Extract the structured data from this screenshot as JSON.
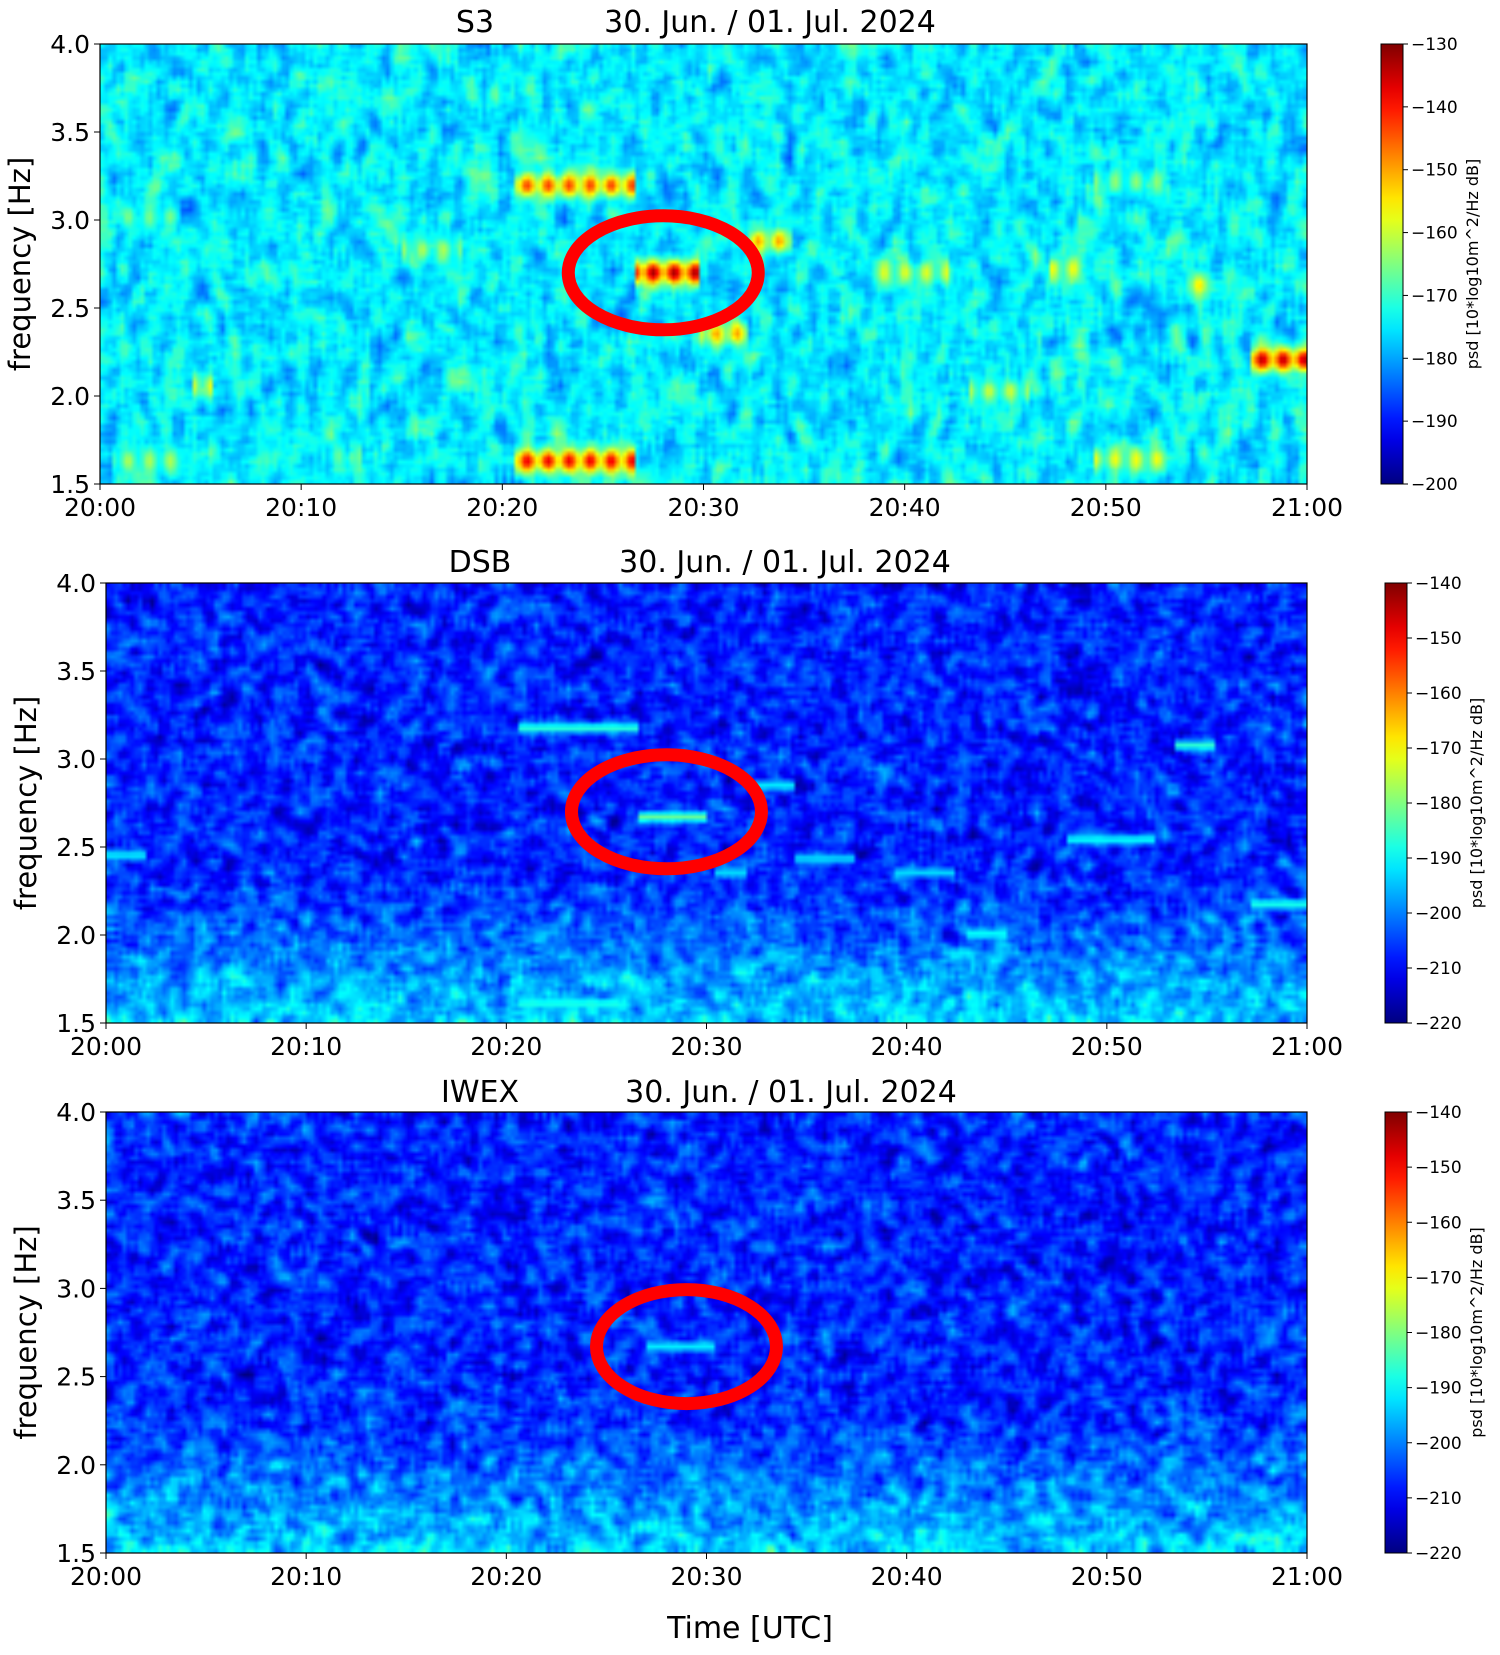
{
  "figure": {
    "xlabel": "Time [UTC]"
  },
  "chart_data": [
    {
      "type": "heatmap",
      "station": "S3",
      "date": "30. Jun. / 01. Jul. 2024",
      "ylabel": "frequency [Hz]",
      "xlabel": "",
      "xlim": [
        "20:00",
        "21:00"
      ],
      "ylim": [
        1.5,
        4.0
      ],
      "xticks": [
        "20:00",
        "20:10",
        "20:20",
        "20:30",
        "20:40",
        "20:50",
        "21:00"
      ],
      "yticks": [
        1.5,
        2.0,
        2.5,
        3.0,
        3.5,
        4.0
      ],
      "colorbar": {
        "label": "psd [10*log10m^2/Hz dB]",
        "range": [
          -200,
          -130
        ],
        "ticks": [
          -130,
          -140,
          -150,
          -160,
          -170,
          -180,
          -190,
          -200
        ],
        "colormap": "jet"
      },
      "background": "noise",
      "features": [
        {
          "t0": 20.5,
          "t1": 26.5,
          "f": 3.2,
          "level": 0.82
        },
        {
          "t0": 20.5,
          "t1": 26.5,
          "f": 1.62,
          "level": 0.9
        },
        {
          "t0": 26.5,
          "t1": 29.8,
          "f": 2.7,
          "level": 0.97
        },
        {
          "t0": 29.8,
          "t1": 32.3,
          "f": 2.35,
          "level": 0.72
        },
        {
          "t0": 32.3,
          "t1": 34.5,
          "f": 2.88,
          "level": 0.72
        },
        {
          "t0": 38.5,
          "t1": 42.3,
          "f": 2.7,
          "level": 0.6
        },
        {
          "t0": 43.3,
          "t1": 46.3,
          "f": 2.02,
          "level": 0.58
        },
        {
          "t0": 47.3,
          "t1": 48.8,
          "f": 2.72,
          "level": 0.62
        },
        {
          "t0": 49.5,
          "t1": 53.0,
          "f": 3.22,
          "level": 0.52
        },
        {
          "t0": 49.5,
          "t1": 53.0,
          "f": 1.63,
          "level": 0.62
        },
        {
          "t0": 54.0,
          "t1": 55.3,
          "f": 2.63,
          "level": 0.65
        },
        {
          "t0": 57.3,
          "t1": 60.0,
          "f": 2.2,
          "level": 0.95
        },
        {
          "t0": 0.5,
          "t1": 4.0,
          "f": 1.62,
          "level": 0.55
        },
        {
          "t0": 1.0,
          "t1": 4.0,
          "f": 3.02,
          "level": 0.5
        },
        {
          "t0": 4.5,
          "t1": 5.5,
          "f": 2.05,
          "level": 0.62
        },
        {
          "t0": 15.0,
          "t1": 18.0,
          "f": 2.83,
          "level": 0.55
        },
        {
          "t0": 11.0,
          "t1": 13.0,
          "f": 1.65,
          "level": 0.48
        }
      ],
      "annotation": {
        "shape": "ellipse",
        "color": "#ff0000",
        "t": 28.0,
        "f": 2.7
      }
    },
    {
      "type": "heatmap",
      "station": "DSB",
      "date": "30. Jun. / 01. Jul. 2024",
      "ylabel": "frequency [Hz]",
      "xlabel": "",
      "xlim": [
        "20:00",
        "21:00"
      ],
      "ylim": [
        1.5,
        4.0
      ],
      "xticks": [
        "20:00",
        "20:10",
        "20:20",
        "20:30",
        "20:40",
        "20:50",
        "21:00"
      ],
      "yticks": [
        1.5,
        2.0,
        2.5,
        3.0,
        3.5,
        4.0
      ],
      "colorbar": {
        "label": "psd [10*log10m^2/Hz dB]",
        "range": [
          -220,
          -140
        ],
        "ticks": [
          -140,
          -150,
          -160,
          -170,
          -180,
          -190,
          -200,
          -210,
          -220
        ],
        "colormap": "jet"
      },
      "background": "noise-low-frequency-rise",
      "features": [
        {
          "t0": 20.5,
          "t1": 26.5,
          "f": 3.18,
          "level": 0.42
        },
        {
          "t0": 26.5,
          "t1": 30.0,
          "f": 2.67,
          "level": 0.48
        },
        {
          "t0": 20.5,
          "t1": 25.5,
          "f": 1.6,
          "level": 0.4
        },
        {
          "t0": 0.0,
          "t1": 2.0,
          "f": 2.45,
          "level": 0.36
        },
        {
          "t0": 30.5,
          "t1": 32.0,
          "f": 2.35,
          "level": 0.34
        },
        {
          "t0": 32.5,
          "t1": 34.5,
          "f": 2.85,
          "level": 0.36
        },
        {
          "t0": 34.5,
          "t1": 37.5,
          "f": 2.43,
          "level": 0.34
        },
        {
          "t0": 39.5,
          "t1": 42.5,
          "f": 2.35,
          "level": 0.34
        },
        {
          "t0": 43.0,
          "t1": 45.0,
          "f": 2.0,
          "level": 0.38
        },
        {
          "t0": 48.0,
          "t1": 52.5,
          "f": 2.54,
          "level": 0.38
        },
        {
          "t0": 53.5,
          "t1": 55.5,
          "f": 3.08,
          "level": 0.42
        },
        {
          "t0": 57.3,
          "t1": 60.0,
          "f": 2.17,
          "level": 0.4
        }
      ],
      "annotation": {
        "shape": "ellipse",
        "color": "#ff0000",
        "t": 28.0,
        "f": 2.7
      }
    },
    {
      "type": "heatmap",
      "station": "IWEX",
      "date": "30. Jun. / 01. Jul. 2024",
      "ylabel": "frequency [Hz]",
      "xlabel": "Time [UTC]",
      "xlim": [
        "20:00",
        "21:00"
      ],
      "ylim": [
        1.5,
        4.0
      ],
      "xticks": [
        "20:00",
        "20:10",
        "20:20",
        "20:30",
        "20:40",
        "20:50",
        "21:00"
      ],
      "yticks": [
        1.5,
        2.0,
        2.5,
        3.0,
        3.5,
        4.0
      ],
      "colorbar": {
        "label": "psd [10*log10m^2/Hz dB]",
        "range": [
          -220,
          -140
        ],
        "ticks": [
          -140,
          -150,
          -160,
          -170,
          -180,
          -190,
          -200,
          -210,
          -220
        ],
        "colormap": "jet"
      },
      "background": "noise-low-frequency-rise",
      "features": [
        {
          "t0": 27.0,
          "t1": 30.5,
          "f": 2.67,
          "level": 0.36
        }
      ],
      "annotation": {
        "shape": "ellipse",
        "color": "#ff0000",
        "t": 29.0,
        "f": 2.67
      }
    }
  ]
}
